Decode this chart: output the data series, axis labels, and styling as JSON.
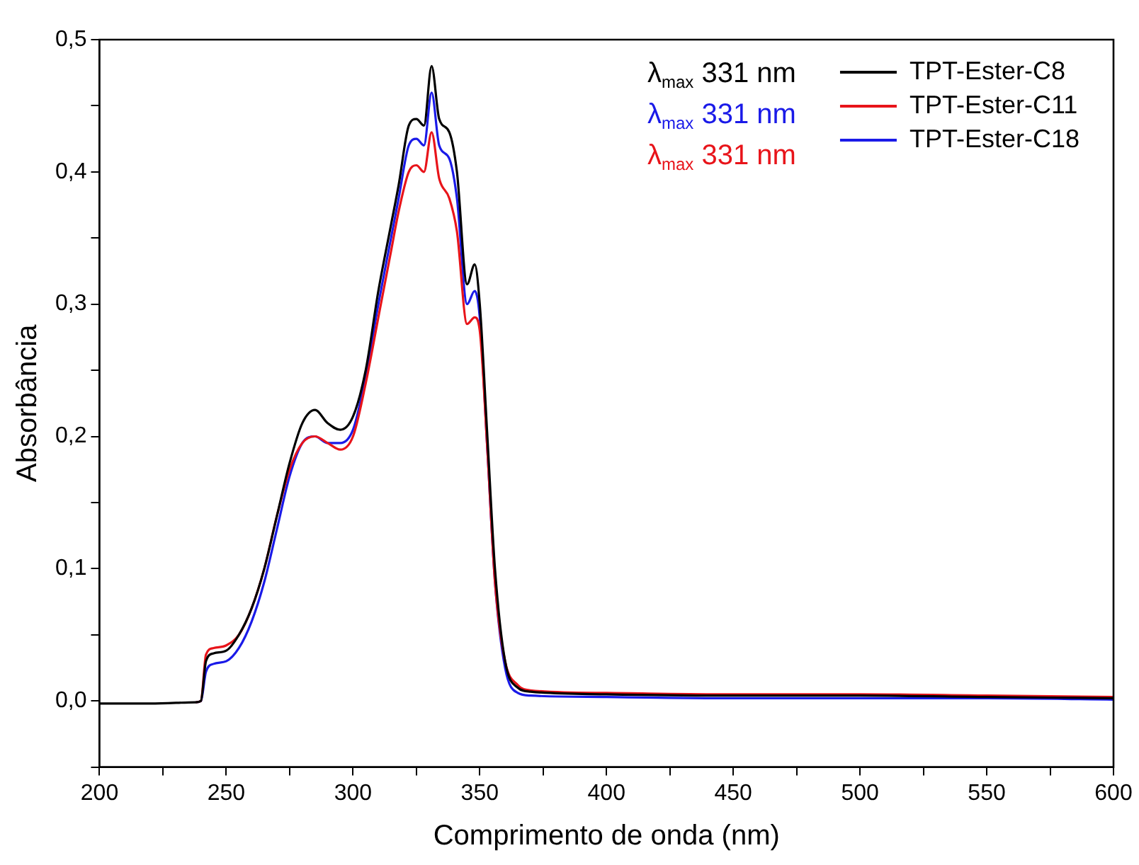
{
  "chart_data": {
    "type": "line",
    "xlabel": "Comprimento de onda (nm)",
    "ylabel": "Absorbância",
    "x": [
      200,
      220,
      238,
      240,
      242,
      245,
      250,
      255,
      260,
      265,
      270,
      275,
      280,
      285,
      290,
      295,
      300,
      305,
      310,
      315,
      318,
      322,
      325,
      328,
      331,
      334,
      338,
      341,
      345,
      348,
      350,
      353,
      356,
      360,
      365,
      370,
      400,
      450,
      500,
      550,
      600
    ],
    "series": [
      {
        "name": "TPT-Ester-C8",
        "color": "#000000",
        "values": [
          -0.002,
          -0.002,
          -0.001,
          0.0,
          0.03,
          0.036,
          0.038,
          0.05,
          0.07,
          0.1,
          0.14,
          0.18,
          0.21,
          0.22,
          0.21,
          0.205,
          0.215,
          0.25,
          0.31,
          0.36,
          0.39,
          0.435,
          0.44,
          0.435,
          0.48,
          0.44,
          0.43,
          0.4,
          0.315,
          0.33,
          0.3,
          0.2,
          0.1,
          0.03,
          0.01,
          0.007,
          0.005,
          0.004,
          0.004,
          0.003,
          0.002
        ]
      },
      {
        "name": "TPT-Ester-C11",
        "color": "#e8141a",
        "values": [
          null,
          null,
          -0.001,
          0.0,
          0.035,
          0.04,
          0.042,
          0.05,
          0.07,
          0.1,
          0.14,
          0.175,
          0.195,
          0.2,
          0.195,
          0.19,
          0.2,
          0.24,
          0.29,
          0.34,
          0.37,
          0.4,
          0.405,
          0.4,
          0.43,
          0.395,
          0.38,
          0.355,
          0.285,
          0.29,
          0.28,
          0.19,
          0.09,
          0.03,
          0.012,
          0.008,
          0.006,
          0.005,
          0.005,
          0.004,
          0.003
        ]
      },
      {
        "name": "TPT-Ester-C18",
        "color": "#1a1ae8",
        "values": [
          null,
          null,
          -0.001,
          0.0,
          0.022,
          0.028,
          0.03,
          0.04,
          0.06,
          0.09,
          0.13,
          0.17,
          0.195,
          0.2,
          0.195,
          0.195,
          0.205,
          0.245,
          0.3,
          0.35,
          0.38,
          0.42,
          0.425,
          0.42,
          0.46,
          0.42,
          0.41,
          0.38,
          0.3,
          0.31,
          0.29,
          0.19,
          0.09,
          0.025,
          0.006,
          0.004,
          0.003,
          0.002,
          0.002,
          0.002,
          0.001
        ]
      }
    ],
    "annotations": [
      "λ$_{max}$ 331 nm",
      "λ$_{max}$ 331 nm",
      "λ$_{max}$ 331 nm"
    ],
    "xlim": [
      200,
      600
    ],
    "xticks": [
      200,
      {
        "value": 225,
        "label": null
      },
      250,
      {
        "value": 275,
        "label": null
      },
      300,
      {
        "value": 325,
        "label": null
      },
      350,
      {
        "value": 375,
        "label": null
      },
      400,
      {
        "value": 425,
        "label": null
      },
      450,
      {
        "value": 475,
        "label": null
      },
      500,
      {
        "value": 525,
        "label": null
      },
      550,
      {
        "value": 575,
        "label": null
      },
      600
    ],
    "ylim": [
      -0.05,
      0.5
    ],
    "yticks": [
      {
        "value": -0.05,
        "label": null
      },
      {
        "value": 0,
        "label": "0,0"
      },
      {
        "value": 0.05,
        "label": null
      },
      {
        "value": 0.1,
        "label": "0,1"
      },
      {
        "value": 0.15,
        "label": null
      },
      {
        "value": 0.2,
        "label": "0,2"
      },
      {
        "value": 0.25,
        "label": null
      },
      {
        "value": 0.3,
        "label": "0,3"
      },
      {
        "value": 0.35,
        "label": null
      },
      {
        "value": 0.4,
        "label": "0,4"
      },
      {
        "value": 0.45,
        "label": null
      },
      {
        "value": 0.5,
        "label": "0,5"
      }
    ],
    "grid": false,
    "legend": "top right",
    "marker": "none",
    "line_style": "solid"
  }
}
